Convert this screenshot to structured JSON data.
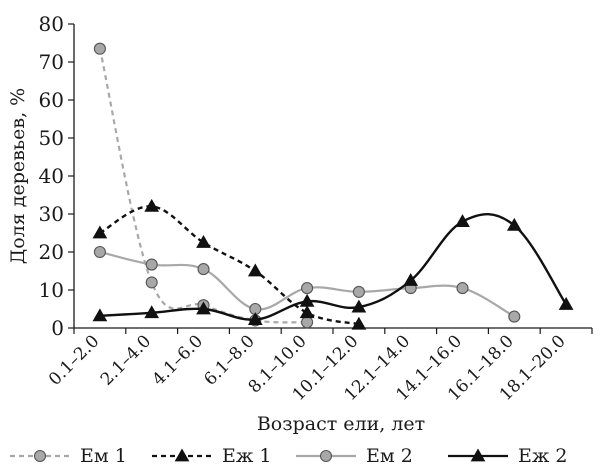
{
  "chart_data": {
    "type": "line",
    "xlabel": "Возраст ели, лет",
    "ylabel": "Доля деревьев, %",
    "ylim": [
      0,
      80
    ],
    "yticks": [
      0,
      10,
      20,
      30,
      40,
      50,
      60,
      70,
      80
    ],
    "categories": [
      "0.1–2.0",
      "2.1–4.0",
      "4.1–6.0",
      "6.1–8.0",
      "8.1–10.0",
      "10.1–12.0",
      "12.1–14.0",
      "14.1–16.0",
      "16.1–18.0",
      "18.1–20.0"
    ],
    "grid": false,
    "legend_position": "bottom",
    "series": [
      {
        "name": "Ем 1",
        "marker": "circle",
        "line": "dashed",
        "color": "#a8a8a8",
        "marker_fill": "#a8a8a8",
        "values": [
          73.5,
          12,
          6,
          2,
          1.5,
          null,
          null,
          null,
          null,
          null
        ]
      },
      {
        "name": "Еж 1",
        "marker": "triangle",
        "line": "dashed",
        "color": "#111111",
        "marker_fill": "#111111",
        "values": [
          25,
          32,
          22.5,
          15,
          4,
          1,
          null,
          null,
          null,
          null
        ]
      },
      {
        "name": "Ем 2",
        "marker": "circle",
        "line": "solid",
        "color": "#a8a8a8",
        "marker_fill": "#a8a8a8",
        "values": [
          20,
          16.7,
          15.5,
          5,
          10.5,
          9.5,
          10.5,
          10.5,
          3,
          null
        ]
      },
      {
        "name": "Еж 2",
        "marker": "triangle",
        "line": "solid",
        "color": "#111111",
        "marker_fill": "#111111",
        "values": [
          3.2,
          4,
          5,
          2.2,
          7,
          5.5,
          12.5,
          28,
          27,
          6.2
        ]
      }
    ]
  }
}
